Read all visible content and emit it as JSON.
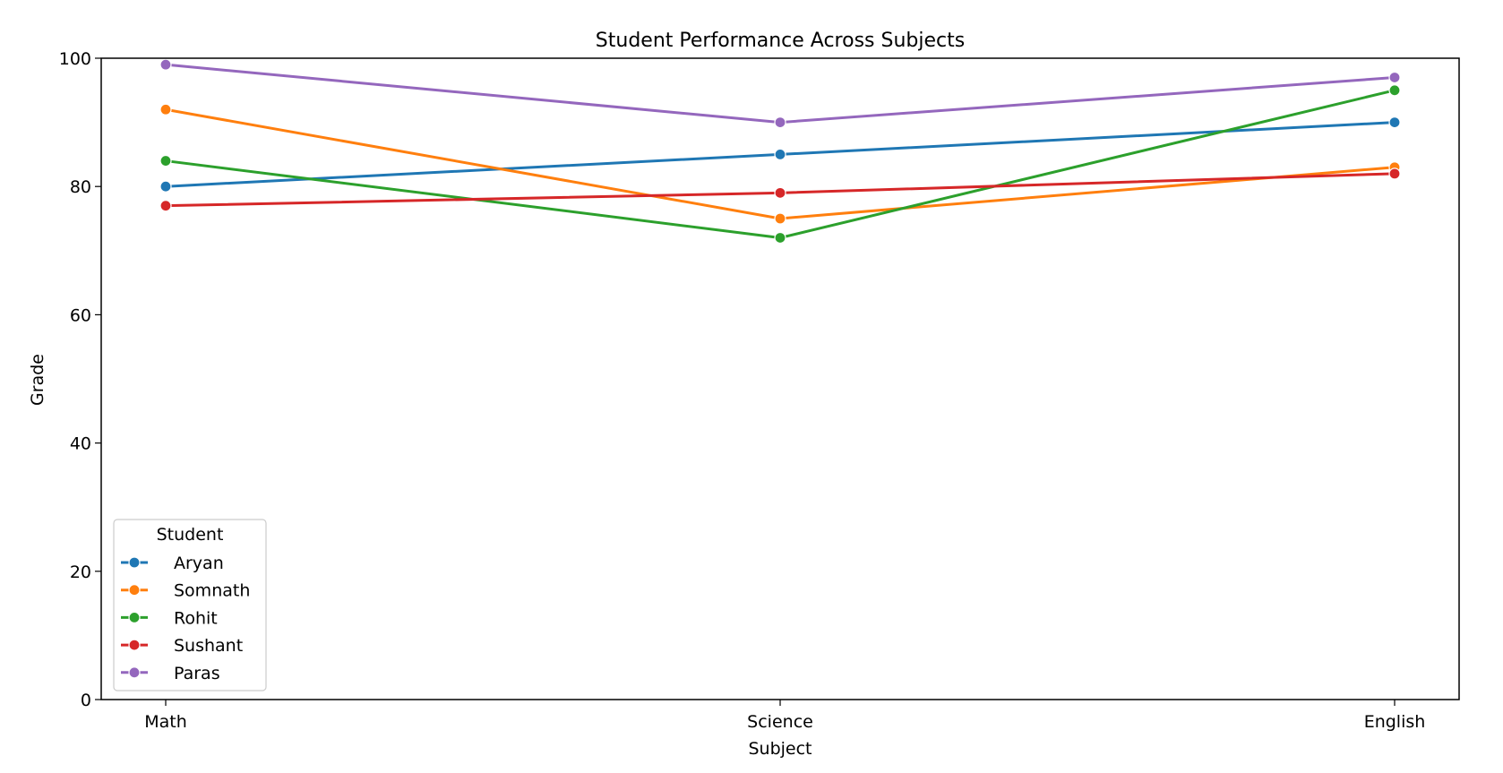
{
  "chart_data": {
    "type": "line",
    "title": "Student Performance Across Subjects",
    "xlabel": "Subject",
    "ylabel": "Grade",
    "categories": [
      "Math",
      "Science",
      "English"
    ],
    "ylim": [
      0,
      100
    ],
    "yticks": [
      0,
      20,
      40,
      60,
      80,
      100
    ],
    "grid": false,
    "legend": {
      "title": "Student",
      "placement": "lower-left"
    },
    "series": [
      {
        "name": "Aryan",
        "color": "#1f77b4",
        "values": [
          80,
          85,
          90
        ]
      },
      {
        "name": "Somnath",
        "color": "#ff7f0e",
        "values": [
          92,
          75,
          83
        ]
      },
      {
        "name": "Rohit",
        "color": "#2ca02c",
        "values": [
          84,
          72,
          95
        ]
      },
      {
        "name": "Sushant",
        "color": "#d62728",
        "values": [
          77,
          79,
          82
        ]
      },
      {
        "name": "Paras",
        "color": "#9467bd",
        "values": [
          99,
          90,
          97
        ]
      }
    ]
  }
}
